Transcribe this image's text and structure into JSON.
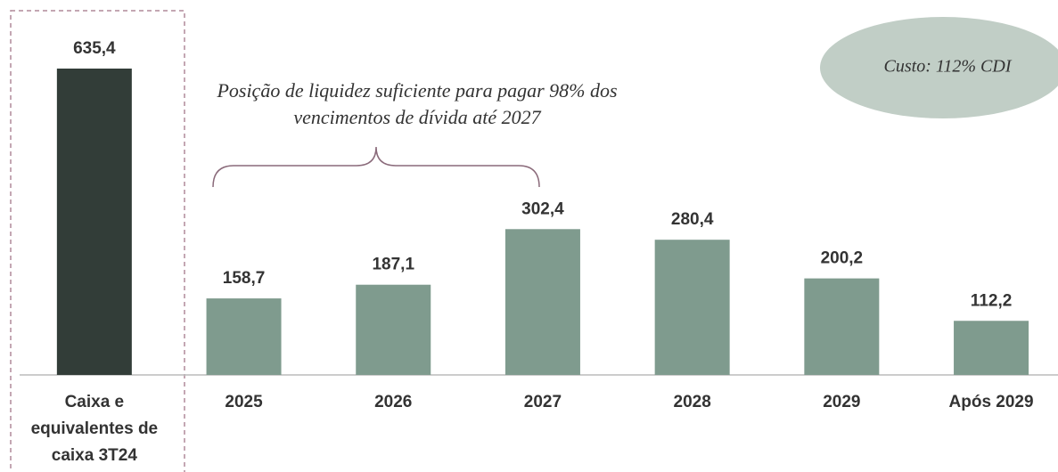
{
  "chart_data": {
    "type": "bar",
    "categories": [
      "Caixa e equivalentes de caixa 3T24",
      "2025",
      "2026",
      "2027",
      "2028",
      "2029",
      "Após 2029"
    ],
    "values": [
      635.4,
      158.7,
      187.1,
      302.4,
      280.4,
      200.2,
      112.2
    ],
    "value_labels": [
      "635,4",
      "158,7",
      "187,1",
      "302,4",
      "280,4",
      "200,2",
      "112,2"
    ],
    "colors": [
      "#323d38",
      "#7f9b8e",
      "#7f9b8e",
      "#7f9b8e",
      "#7f9b8e",
      "#7f9b8e",
      "#7f9b8e"
    ],
    "annotations": [
      "Posição de liquidez suficiente para pagar 98% dos vencimentos de dívida até 2027",
      "Custo: 112% CDI"
    ]
  }
}
